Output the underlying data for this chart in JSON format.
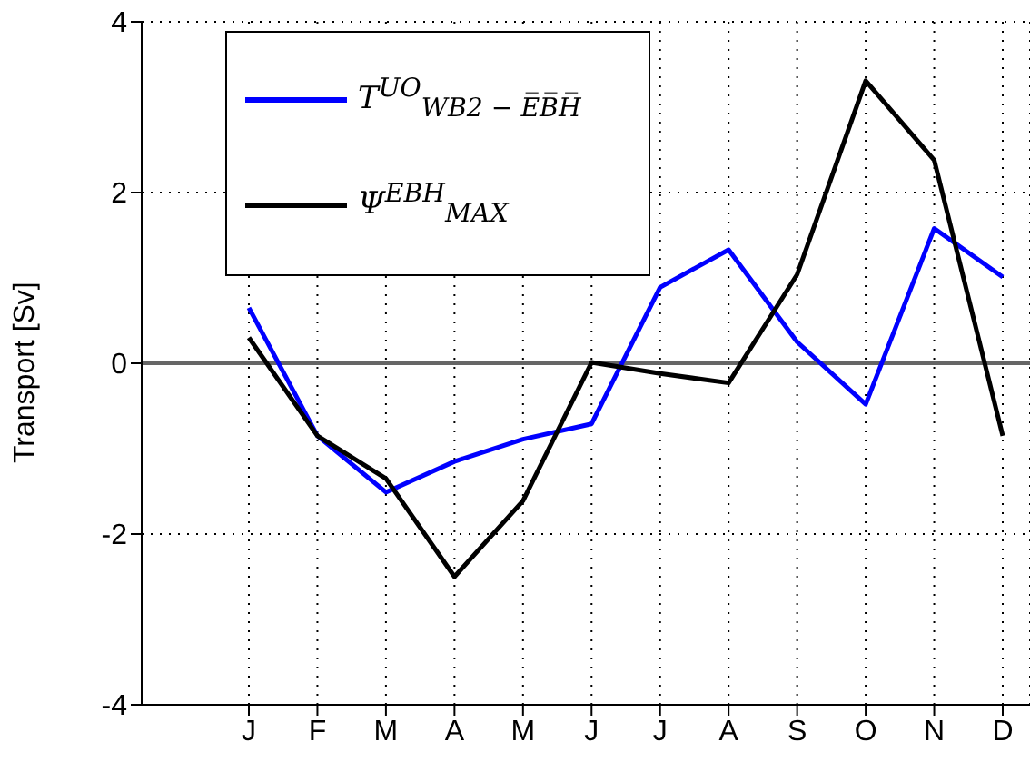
{
  "chart_data": {
    "type": "line",
    "ylabel": "Transport [Sv]",
    "categories": [
      "J",
      "F",
      "M",
      "A",
      "M",
      "J",
      "J",
      "A",
      "S",
      "O",
      "N",
      "D"
    ],
    "series": [
      {
        "name": "T$^{UO}$$_{WB2 − E̅B̅H̅}$",
        "color": "#0000ff",
        "values": [
          0.65,
          -0.85,
          -1.51,
          -1.15,
          -0.89,
          -0.71,
          0.89,
          1.33,
          0.25,
          -0.48,
          1.58,
          1.01
        ]
      },
      {
        "name": "Ψ$^{EBH}$$_{MAX}$",
        "color": "#000000",
        "values": [
          0.3,
          -0.85,
          -1.35,
          -2.5,
          -1.61,
          0.01,
          -0.12,
          -0.23,
          1.04,
          3.31,
          2.38,
          -0.85
        ]
      }
    ],
    "ylim": [
      -4,
      4
    ],
    "yticks": [
      -4,
      -2,
      0,
      2,
      4
    ],
    "ref_lines": [
      {
        "axis": "y",
        "value": 0,
        "color": "#666666"
      }
    ],
    "grid": true,
    "legend": "top left",
    "marker": "none",
    "line_style": "solid"
  }
}
